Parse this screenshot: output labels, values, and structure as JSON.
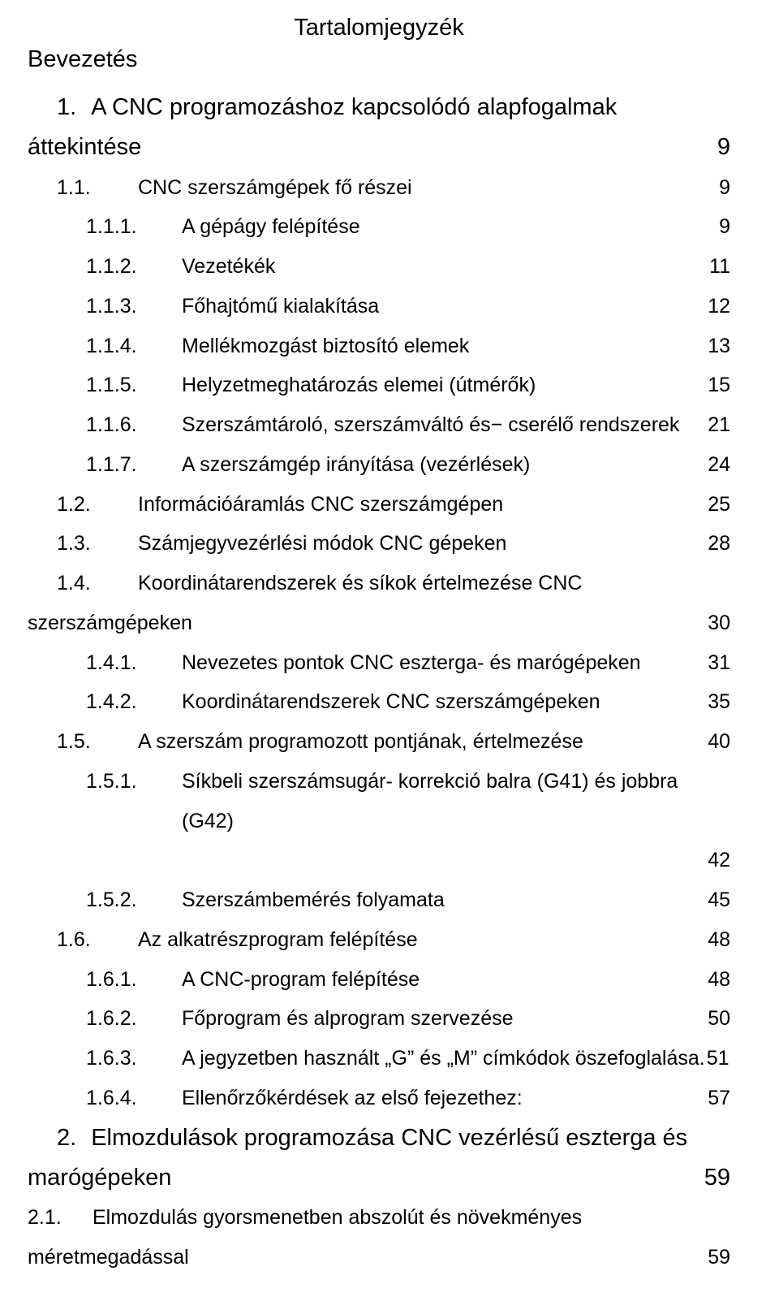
{
  "title": "Tartalomjegyzék",
  "intro": "Bevezetés",
  "entries": [
    {
      "lvl": 0,
      "num": "1.",
      "label": "A CNC programozáshoz kapcsolódó alapfogalmak"
    },
    {
      "lvl": "cont0",
      "label": "áttekintése",
      "page": "9"
    },
    {
      "lvl": 2,
      "num": "1.1.",
      "label": "CNC szerszámgépek fő részei",
      "page": "9"
    },
    {
      "lvl": 3,
      "num": "1.1.1.",
      "label": "A gépágy felépítése",
      "page": "9"
    },
    {
      "lvl": 3,
      "num": "1.1.2.",
      "label": "Vezetékék",
      "page": "11"
    },
    {
      "lvl": 3,
      "num": "1.1.3.",
      "label": "Főhajtómű kialakítása",
      "page": "12"
    },
    {
      "lvl": 3,
      "num": "1.1.4.",
      "label": "Mellékmozgást biztosító elemek",
      "page": "13"
    },
    {
      "lvl": 3,
      "num": "1.1.5.",
      "label": "Helyzetmeghatározás elemei (útmérők)",
      "page": "15"
    },
    {
      "lvl": 3,
      "num": "1.1.6.",
      "label": "Szerszámtároló, szerszámváltó és− cserélő rendszerek",
      "page": "21"
    },
    {
      "lvl": 3,
      "num": "1.1.7.",
      "label": "A szerszámgép irányítása (vezérlések)",
      "page": "24"
    },
    {
      "lvl": 2,
      "num": "1.2.",
      "label": "Információáramlás CNC szerszámgépen",
      "page": "25"
    },
    {
      "lvl": 2,
      "num": "1.3.",
      "label": "Számjegyvezérlési módok CNC gépeken",
      "page": "28"
    },
    {
      "lvl": 2,
      "num": "1.4.",
      "label": "Koordinátarendszerek és síkok értelmezése CNC"
    },
    {
      "lvl": "cont",
      "label": "szerszámgépeken",
      "page": "30"
    },
    {
      "lvl": 3,
      "num": "1.4.1.",
      "label": "Nevezetes pontok CNC eszterga- és marógépeken",
      "page": "31"
    },
    {
      "lvl": 3,
      "num": "1.4.2.",
      "label": "Koordinátarendszerek CNC szerszámgépeken",
      "page": "35"
    },
    {
      "lvl": 2,
      "num": "1.5.",
      "label": "A szerszám programozott pontjának, értelmezése",
      "page": "40"
    },
    {
      "lvl": 3,
      "num": "1.5.1.",
      "label": "Síkbeli szerszámsugár- korrekció balra (G41) és jobbra (G42)"
    },
    {
      "lvl": 3,
      "num": "",
      "label": "",
      "page": "42"
    },
    {
      "lvl": 3,
      "num": "1.5.2.",
      "label": "Szerszámbemérés folyamata",
      "page": "45"
    },
    {
      "lvl": 2,
      "num": "1.6.",
      "label": "Az alkatrészprogram felépítése",
      "page": "48"
    },
    {
      "lvl": 3,
      "num": "1.6.1.",
      "label": "A CNC-program felépítése",
      "page": "48"
    },
    {
      "lvl": 3,
      "num": "1.6.2.",
      "label": "Főprogram és alprogram szervezése",
      "page": "50"
    },
    {
      "lvl": 3,
      "num": "1.6.3.",
      "label": "A jegyzetben használt „G” és „M” címkódok öszefoglalása",
      "page": "51",
      "tightsep": true
    },
    {
      "lvl": 3,
      "num": "1.6.4.",
      "label": "Ellenőrzőkérdések az első fejezethez:",
      "page": "57"
    },
    {
      "lvl": 0,
      "num": "2.",
      "label": "Elmozdulások programozása CNC vezérlésű eszterga és"
    },
    {
      "lvl": "cont0",
      "label": "marógépeken",
      "page": "59"
    },
    {
      "lvl": 1,
      "num": "2.1.",
      "label": "Elmozdulás gyorsmenetben abszolút és növekményes"
    },
    {
      "lvl": "cont",
      "label": "méretmegadással",
      "page": "59"
    }
  ]
}
